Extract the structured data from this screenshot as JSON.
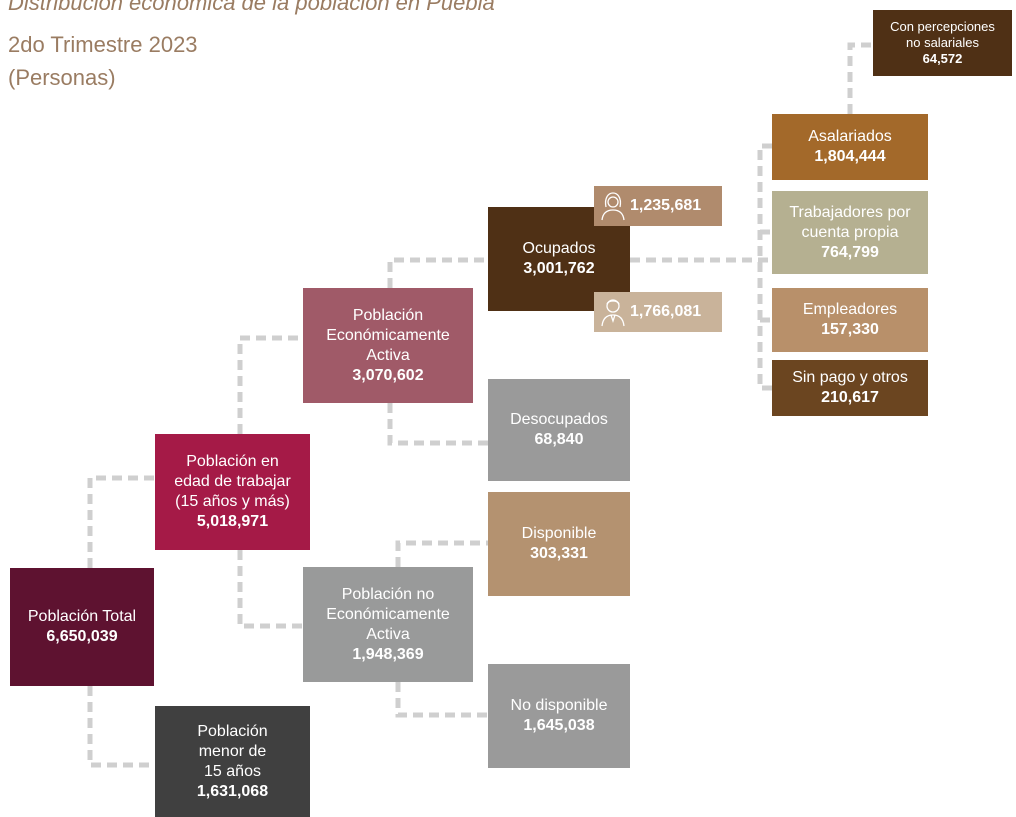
{
  "header": {
    "title": "Distribución económica de la población en Puebla",
    "subtitle": "2do Trimestre 2023",
    "unit": "(Personas)"
  },
  "nodes": [
    {
      "label": [
        "Población Total"
      ],
      "value": "6,650,039"
    },
    {
      "label": [
        "Población",
        "menor de",
        "15 años"
      ],
      "value": "1,631,068"
    },
    {
      "label": [
        "Población en",
        "edad de trabajar",
        "(15 años y más)"
      ],
      "value": "5,018,971"
    },
    {
      "label": [
        "Población",
        "Económicamente",
        "Activa"
      ],
      "value": "3,070,602"
    },
    {
      "label": [
        "Población no",
        "Económicamente",
        "Activa"
      ],
      "value": "1,948,369"
    },
    {
      "label": [
        "Ocupados"
      ],
      "value": "3,001,762"
    },
    {
      "label": [
        "Desocupados"
      ],
      "value": "68,840"
    },
    {
      "label": [
        "Disponible"
      ],
      "value": "303,331"
    },
    {
      "label": [
        "No disponible"
      ],
      "value": "1,645,038"
    },
    {
      "label": [
        "Con percepciones",
        "no salariales"
      ],
      "value": "64,572"
    },
    {
      "label": [
        "Asalariados"
      ],
      "value": "1,804,444"
    },
    {
      "label": [
        "Trabajadores por",
        "cuenta propia"
      ],
      "value": "764,799"
    },
    {
      "label": [
        "Empleadores"
      ],
      "value": "157,330"
    },
    {
      "label": [
        "Sin pago y otros"
      ],
      "value": "210,617"
    }
  ],
  "badges": [
    {
      "name": "mujeres",
      "value": "1,235,681"
    },
    {
      "name": "hombres",
      "value": "1,766,081"
    }
  ]
}
